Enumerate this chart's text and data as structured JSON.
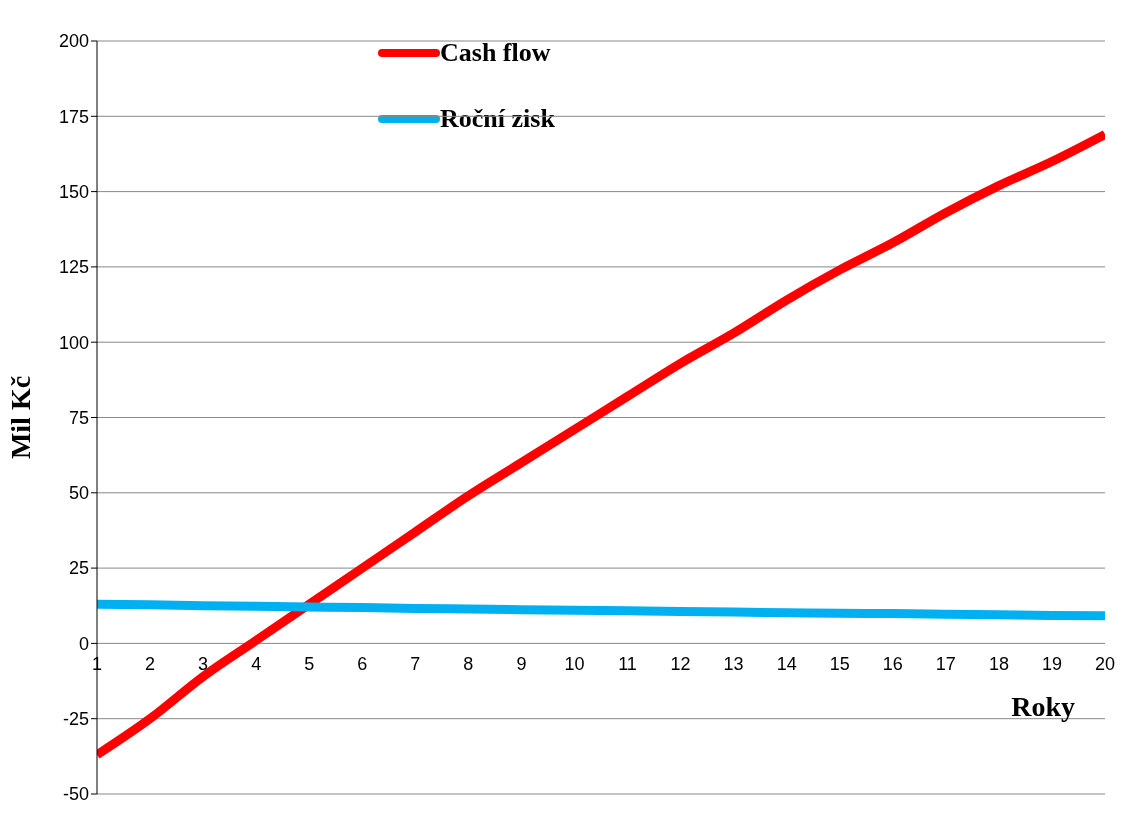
{
  "chart_data": {
    "type": "line",
    "xlabel": "Roky",
    "ylabel": "Mil Kč",
    "x": [
      1,
      2,
      3,
      4,
      5,
      6,
      7,
      8,
      9,
      10,
      11,
      12,
      13,
      14,
      15,
      16,
      17,
      18,
      19,
      20
    ],
    "series": [
      {
        "name": "Cash flow",
        "color": "#ff0000",
        "values": [
          -37,
          -25,
          -11,
          1,
          13,
          25,
          37,
          49,
          60,
          71,
          82,
          93,
          103,
          114,
          124,
          133,
          143,
          152,
          160,
          169
        ]
      },
      {
        "name": "Roční zisk",
        "color": "#00b0f0",
        "values": [
          13,
          12.8,
          12.5,
          12.3,
          12.1,
          11.9,
          11.6,
          11.4,
          11.2,
          11,
          10.8,
          10.6,
          10.4,
          10.2,
          10,
          9.9,
          9.7,
          9.5,
          9.3,
          9.2
        ]
      }
    ],
    "xlim": [
      1,
      20
    ],
    "xticks": [
      1,
      2,
      3,
      4,
      5,
      6,
      7,
      8,
      9,
      10,
      11,
      12,
      13,
      14,
      15,
      16,
      17,
      18,
      19,
      20
    ],
    "ylim": [
      -50,
      200
    ],
    "yticks": [
      -50,
      -25,
      0,
      25,
      50,
      75,
      100,
      125,
      150,
      175,
      200
    ],
    "grid": "y",
    "legend": "top left",
    "marker": "none",
    "line_style": "solid"
  }
}
